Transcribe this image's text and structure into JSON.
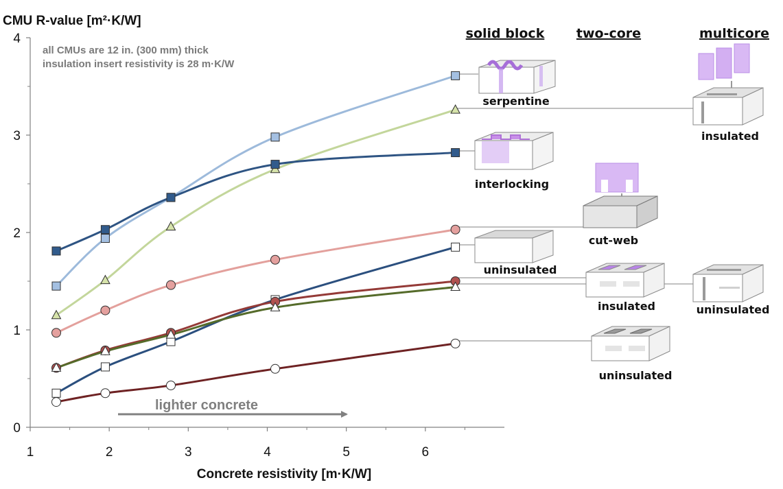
{
  "chart_data": {
    "type": "line",
    "title": "CMU R-value [m²·K/W]",
    "xlabel": "Concrete resistivity [m·K/W]",
    "ylabel": "CMU R-value [m²·K/W]",
    "xlim": [
      1,
      7
    ],
    "ylim": [
      0,
      4
    ],
    "xticks": [
      "1",
      "2",
      "3",
      "4",
      "5",
      "6"
    ],
    "yticks": [
      "0",
      "1",
      "2",
      "3",
      "4"
    ],
    "grid": false,
    "x": [
      1.33,
      1.95,
      2.78,
      4.1,
      6.38
    ],
    "notes": [
      "all CMUs are 12 in. (300 mm) thick",
      "insulation insert resistivity is 28 m·K/W"
    ],
    "annotation_arrow": "lighter concrete",
    "column_headers": [
      "solid block",
      "two-core",
      "multicore"
    ],
    "series": [
      {
        "color": "#9dbadb",
        "marker": "square",
        "marker_fill": "#a4c0e2",
        "label": "serpentine",
        "values": [
          1.45,
          1.94,
          2.36,
          2.98,
          3.61
        ]
      },
      {
        "color": "#c3d69b",
        "marker": "triangle",
        "marker_fill": "#d6e3aa",
        "label": "insulated",
        "values": [
          1.15,
          1.51,
          2.06,
          2.65,
          3.26
        ]
      },
      {
        "color": "#2e5483",
        "marker": "square",
        "marker_fill": "#315b8c",
        "label": "interlocking",
        "values": [
          1.81,
          2.03,
          2.36,
          2.7,
          2.82
        ]
      },
      {
        "color": "#e3a09c",
        "marker": "circle",
        "marker_fill": "#e4a09e",
        "label": "cut-web",
        "values": [
          0.97,
          1.2,
          1.46,
          1.72,
          2.03
        ]
      },
      {
        "color": "#2b4f7e",
        "marker": "square",
        "marker_fill": "#ffffff",
        "label": "uninsulated",
        "values": [
          0.35,
          0.62,
          0.88,
          1.31,
          1.85
        ]
      },
      {
        "color": "#943a37",
        "marker": "circle",
        "marker_fill": "#b0514f",
        "label": "insulated",
        "values": [
          0.61,
          0.79,
          0.97,
          1.29,
          1.5
        ]
      },
      {
        "color": "#556b2a",
        "marker": "triangle",
        "marker_fill": "#ffffff",
        "label": "uninsulated",
        "values": [
          0.61,
          0.78,
          0.95,
          1.23,
          1.44
        ]
      },
      {
        "color": "#6e2223",
        "marker": "circle",
        "marker_fill": "#ffffff",
        "label": "uninsulated",
        "values": [
          0.26,
          0.35,
          0.43,
          0.6,
          0.86
        ]
      }
    ]
  }
}
